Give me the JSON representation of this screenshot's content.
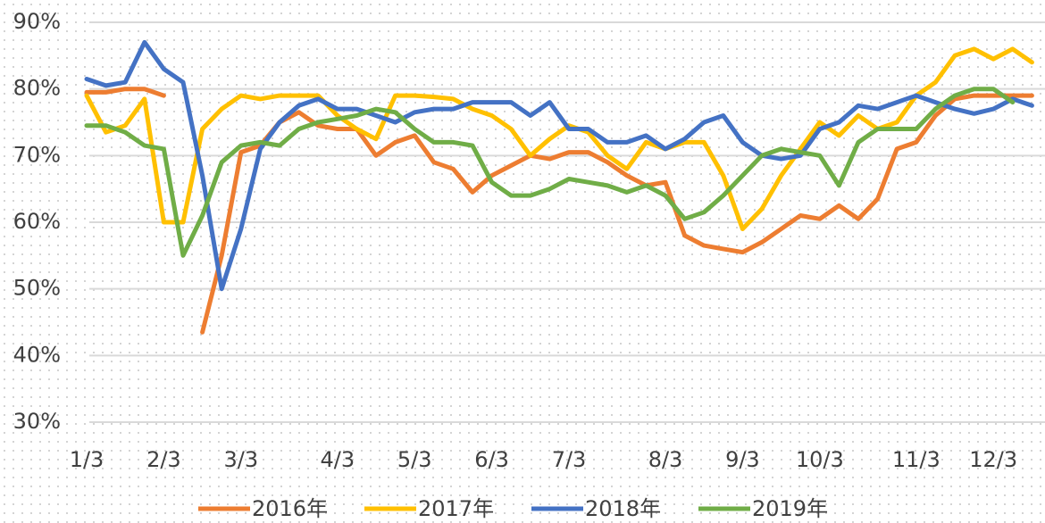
{
  "chart_data": {
    "type": "line",
    "categories": [
      "1/3",
      null,
      null,
      null,
      "2/3",
      null,
      null,
      null,
      "3/3",
      null,
      null,
      null,
      null,
      "4/3",
      null,
      null,
      null,
      "5/3",
      null,
      null,
      null,
      "6/3",
      null,
      null,
      null,
      "7/3",
      null,
      null,
      null,
      null,
      "8/3",
      null,
      null,
      null,
      "9/3",
      null,
      null,
      null,
      "10/3",
      null,
      null,
      null,
      null,
      "11/3",
      null,
      null,
      null,
      "12/3",
      null,
      null
    ],
    "series": [
      {
        "name": "2016年",
        "color": "#ed7d31",
        "values": [
          79.5,
          79.5,
          80,
          80,
          79,
          null,
          43.5,
          55,
          70.5,
          71.5,
          75,
          76.5,
          74.5,
          74,
          74,
          70,
          72,
          73,
          69,
          68,
          64.5,
          67,
          68.5,
          70,
          69.5,
          70.5,
          70.5,
          69,
          67,
          65.5,
          66,
          58,
          56.5,
          56,
          55.5,
          57,
          59,
          61,
          60.5,
          62.5,
          60.5,
          63.5,
          71,
          72,
          76,
          78.5,
          79,
          79,
          79,
          79
        ]
      },
      {
        "name": "2017年",
        "color": "#ffc000",
        "values": [
          79,
          73.5,
          74.5,
          78.5,
          60,
          60,
          74,
          77,
          79,
          78.5,
          79,
          79,
          79,
          76,
          74,
          72.5,
          79,
          79,
          78.8,
          78.5,
          77,
          76,
          74,
          70,
          72.5,
          74.5,
          73.5,
          70,
          68,
          72,
          71,
          72,
          72,
          67,
          59,
          62,
          67,
          71,
          75,
          73,
          76,
          74,
          75,
          79,
          81,
          85,
          86,
          84.5,
          86,
          84
        ]
      },
      {
        "name": "2018年",
        "color": "#4472c4",
        "values": [
          81.5,
          80.5,
          81,
          87,
          83,
          81,
          67,
          50,
          59,
          71,
          75,
          77.5,
          78.5,
          77,
          77,
          76,
          75,
          76.5,
          77,
          77,
          78,
          78,
          78,
          76,
          78,
          74,
          74,
          72,
          72,
          73,
          71,
          72.5,
          75,
          76,
          72,
          70,
          69.5,
          70,
          74,
          75,
          77.5,
          77,
          78,
          79,
          78,
          77,
          76.3,
          77,
          78.5,
          77.5
        ]
      },
      {
        "name": "2019年",
        "color": "#70ad47",
        "values": [
          74.5,
          74.5,
          73.5,
          71.5,
          71,
          55,
          61,
          69,
          71.5,
          72,
          71.5,
          74,
          75,
          75.5,
          76,
          77,
          76.5,
          74,
          72,
          72,
          71.5,
          66,
          64,
          64,
          65,
          66.5,
          66,
          65.5,
          64.5,
          65.5,
          64,
          60.5,
          61.5,
          64,
          67,
          70,
          71,
          70.5,
          70,
          65.5,
          72,
          74,
          74,
          74,
          77,
          79,
          80,
          80,
          78,
          null
        ]
      }
    ],
    "ylim": [
      30,
      90
    ],
    "yticks": [
      {
        "value": 30,
        "label": "30%"
      },
      {
        "value": 40,
        "label": "40%"
      },
      {
        "value": 50,
        "label": "50%"
      },
      {
        "value": 60,
        "label": "60%"
      },
      {
        "value": 70,
        "label": "70%"
      },
      {
        "value": 80,
        "label": "80%"
      },
      {
        "value": 90,
        "label": "90%"
      }
    ],
    "grid": true,
    "legend": "bottom"
  }
}
